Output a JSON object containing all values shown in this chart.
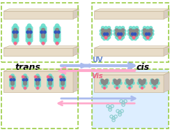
{
  "bg_color": "#ffffff",
  "plate_color": "#e8dcc8",
  "plate_edge": "#c8b89a",
  "plate_top": "#f0e8d8",
  "plate_side": "#d8ccc0",
  "dashed_color": "#99cc44",
  "cyan_mol": "#66ddcc",
  "blue_mol": "#3355bb",
  "gray_mol": "#888888",
  "pink_mol": "#ff6688",
  "arrow_blue": "#aabbee",
  "arrow_pink": "#ffaacc",
  "uv_color": "#6688cc",
  "vis_color": "#ee6688",
  "trans_label": "trans",
  "cis_label": "cis",
  "uv_label": "UV",
  "vis_label": "Vis",
  "light_blue_fill": "#ddeeff",
  "figsize": [
    2.44,
    1.89
  ],
  "dpi": 100
}
